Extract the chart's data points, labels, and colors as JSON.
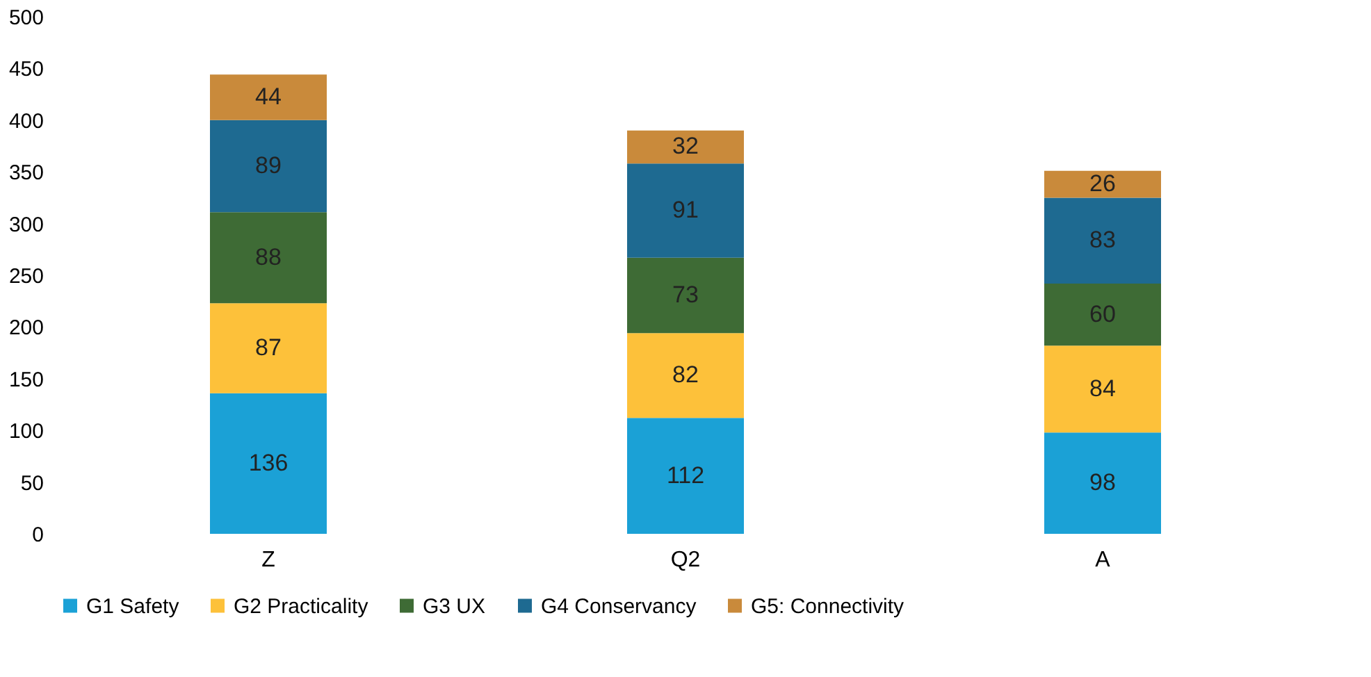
{
  "chart_data": {
    "type": "bar",
    "stacked": true,
    "categories": [
      "Z",
      "Q2",
      "A"
    ],
    "series": [
      {
        "name": "G1 Safety",
        "color": "#1ba1d6",
        "values": [
          136,
          112,
          98
        ]
      },
      {
        "name": "G2 Practicality",
        "color": "#fdc13a",
        "values": [
          87,
          82,
          84
        ]
      },
      {
        "name": "G3 UX",
        "color": "#3e6b35",
        "values": [
          88,
          73,
          60
        ]
      },
      {
        "name": "G4 Conservancy",
        "color": "#1e6a91",
        "values": [
          89,
          91,
          83
        ]
      },
      {
        "name": "G5: Connectivity",
        "color": "#c98a3b",
        "values": [
          44,
          32,
          26
        ]
      }
    ],
    "ylim": [
      0,
      500
    ],
    "yticks": [
      0,
      50,
      100,
      150,
      200,
      250,
      300,
      350,
      400,
      450,
      500
    ],
    "data_labels": true,
    "legend": "bottom",
    "grid": false
  }
}
